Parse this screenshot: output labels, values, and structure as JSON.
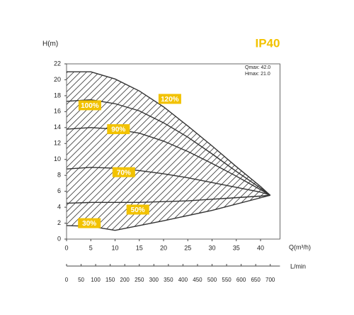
{
  "chart_data": {
    "type": "line",
    "badge": "IP40",
    "ylabel": "H(m)",
    "xlabel": "Q(m³/h)",
    "x2label": "L/min",
    "annotations": [
      "Qmax: 42.0",
      "Hmax: 21.0"
    ],
    "xlim": [
      0,
      44
    ],
    "xticks": [
      0,
      5,
      10,
      15,
      20,
      25,
      30,
      35,
      40
    ],
    "ylim": [
      0,
      22
    ],
    "yticks": [
      0,
      2,
      4,
      6,
      8,
      10,
      12,
      14,
      16,
      18,
      20,
      22
    ],
    "x2lim": [
      0,
      733.3
    ],
    "x2ticks": [
      0,
      50,
      100,
      150,
      200,
      250,
      300,
      350,
      400,
      450,
      500,
      550,
      600,
      650,
      700
    ],
    "series": [
      {
        "name": "120%",
        "color": "#333333",
        "x": [
          0,
          5,
          10,
          15,
          20,
          25,
          30,
          35,
          40,
          42
        ],
        "values": [
          21,
          21,
          20.1,
          18.6,
          16.6,
          14.2,
          11.7,
          9.1,
          6.6,
          5.5
        ]
      },
      {
        "name": "100%",
        "color": "#333333",
        "x": [
          0,
          5,
          10,
          15,
          20,
          25,
          30,
          35,
          40,
          42
        ],
        "values": [
          17.3,
          17.5,
          17,
          16.1,
          14.6,
          12.8,
          10.7,
          8.5,
          6.4,
          5.5
        ]
      },
      {
        "name": "90%",
        "color": "#333333",
        "x": [
          0,
          5,
          10,
          15,
          20,
          25,
          30,
          35,
          40,
          42
        ],
        "values": [
          13.8,
          14,
          13.8,
          13.3,
          12.3,
          11,
          9.5,
          7.9,
          6.2,
          5.5
        ]
      },
      {
        "name": "70%",
        "color": "#333333",
        "x": [
          0,
          5,
          10,
          15,
          20,
          25,
          30,
          35,
          40,
          42
        ],
        "values": [
          8.8,
          9,
          8.9,
          8.6,
          8.2,
          7.7,
          7.1,
          6.5,
          5.9,
          5.5
        ]
      },
      {
        "name": "50%",
        "color": "#333333",
        "x": [
          0,
          5,
          10,
          15,
          20,
          25,
          30,
          35,
          40,
          42
        ],
        "values": [
          4.5,
          4.6,
          4.6,
          4.6,
          4.7,
          4.8,
          5,
          5.2,
          5.4,
          5.5
        ]
      },
      {
        "name": "30%",
        "color": "#333333",
        "x": [
          0,
          5,
          10
        ],
        "values": [
          1.7,
          1.6,
          1.1
        ]
      },
      {
        "color": "#333333",
        "x": [
          10,
          20,
          30,
          42
        ],
        "values": [
          1.1,
          2.3,
          3.6,
          5.5
        ]
      }
    ],
    "label_color": "#f2c200"
  }
}
